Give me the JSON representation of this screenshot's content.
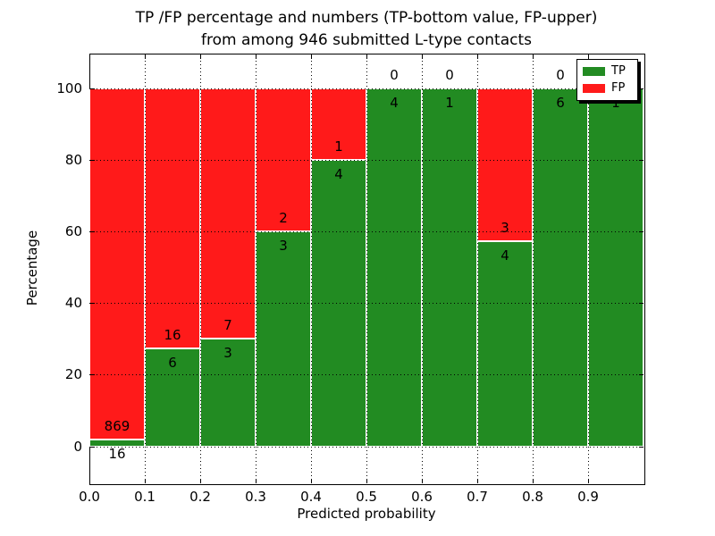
{
  "chart_data": {
    "type": "bar",
    "stacked": true,
    "title_line1": "TP /FP percentage and numbers (TP-bottom value, FP-upper)",
    "title_line2": "from among 946 submitted L-type contacts",
    "xlabel": "Predicted probability",
    "ylabel": "Percentage",
    "total_contacts": 946,
    "xlim": [
      0.0,
      1.0
    ],
    "ylim": [
      -10.3,
      109.6
    ],
    "grid": "dotted",
    "x_ticks": [
      {
        "value": 0.0,
        "label": "0.0"
      },
      {
        "value": 0.1,
        "label": "0.1"
      },
      {
        "value": 0.2,
        "label": "0.2"
      },
      {
        "value": 0.3,
        "label": "0.3"
      },
      {
        "value": 0.4,
        "label": "0.4"
      },
      {
        "value": 0.5,
        "label": "0.5"
      },
      {
        "value": 0.6,
        "label": "0.6"
      },
      {
        "value": 0.7,
        "label": "0.7"
      },
      {
        "value": 0.8,
        "label": "0.8"
      },
      {
        "value": 0.9,
        "label": "0.9"
      }
    ],
    "y_ticks": [
      {
        "value": 0,
        "label": "0"
      },
      {
        "value": 20,
        "label": "20"
      },
      {
        "value": 40,
        "label": "40"
      },
      {
        "value": 60,
        "label": "60"
      },
      {
        "value": 80,
        "label": "80"
      },
      {
        "value": 100,
        "label": "100"
      }
    ],
    "colors": {
      "tp": "#228b22",
      "fp": "#ff1a1a"
    },
    "legend": {
      "position": "upper right",
      "entries": [
        {
          "label": "TP",
          "color": "#228b22"
        },
        {
          "label": "FP",
          "color": "#ff1a1a"
        }
      ]
    },
    "bins": [
      {
        "range": [
          0.0,
          0.1
        ],
        "tp_count": 16,
        "fp_count": 869,
        "tp_pct": 1.81,
        "fp_pct": 98.19
      },
      {
        "range": [
          0.1,
          0.2
        ],
        "tp_count": 6,
        "fp_count": 16,
        "tp_pct": 27.27,
        "fp_pct": 72.73
      },
      {
        "range": [
          0.2,
          0.3
        ],
        "tp_count": 3,
        "fp_count": 7,
        "tp_pct": 30.0,
        "fp_pct": 70.0
      },
      {
        "range": [
          0.3,
          0.4
        ],
        "tp_count": 3,
        "fp_count": 2,
        "tp_pct": 60.0,
        "fp_pct": 40.0
      },
      {
        "range": [
          0.4,
          0.5
        ],
        "tp_count": 4,
        "fp_count": 1,
        "tp_pct": 80.0,
        "fp_pct": 20.0
      },
      {
        "range": [
          0.5,
          0.6
        ],
        "tp_count": 4,
        "fp_count": 0,
        "tp_pct": 100.0,
        "fp_pct": 0.0
      },
      {
        "range": [
          0.6,
          0.7
        ],
        "tp_count": 1,
        "fp_count": 0,
        "tp_pct": 100.0,
        "fp_pct": 0.0
      },
      {
        "range": [
          0.7,
          0.8
        ],
        "tp_count": 4,
        "fp_count": 3,
        "tp_pct": 57.14,
        "fp_pct": 42.86
      },
      {
        "range": [
          0.8,
          0.9
        ],
        "tp_count": 6,
        "fp_count": 0,
        "tp_pct": 100.0,
        "fp_pct": 0.0
      },
      {
        "range": [
          0.9,
          1.0
        ],
        "tp_count": 1,
        "fp_count": 0,
        "tp_pct": 100.0,
        "fp_pct": 0.0
      }
    ]
  }
}
